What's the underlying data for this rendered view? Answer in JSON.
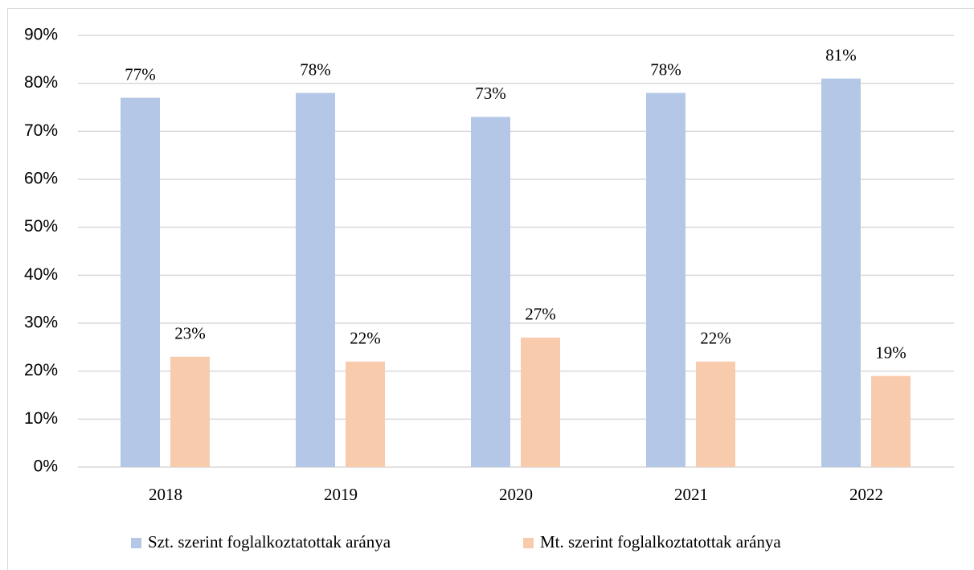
{
  "chart_data": {
    "type": "bar",
    "categories": [
      "2018",
      "2019",
      "2020",
      "2021",
      "2022"
    ],
    "series": [
      {
        "name": "Szt. szerint foglalkoztatottak aránya",
        "color": "#b4c7e7",
        "values": [
          77,
          78,
          73,
          78,
          81
        ],
        "value_labels": [
          "77%",
          "78%",
          "73%",
          "78%",
          "81%"
        ]
      },
      {
        "name": "Mt. szerint foglalkoztatottak aránya",
        "color": "#f8cbad",
        "values": [
          23,
          22,
          27,
          22,
          19
        ],
        "value_labels": [
          "23%",
          "22%",
          "27%",
          "22%",
          "19%"
        ]
      }
    ],
    "ylim": [
      0,
      90
    ],
    "yticks": [
      {
        "value": 0,
        "label": "0%"
      },
      {
        "value": 10,
        "label": "10%"
      },
      {
        "value": 20,
        "label": "20%"
      },
      {
        "value": 30,
        "label": "30%"
      },
      {
        "value": 40,
        "label": "40%"
      },
      {
        "value": 50,
        "label": "50%"
      },
      {
        "value": 60,
        "label": "60%"
      },
      {
        "value": 70,
        "label": "70%"
      },
      {
        "value": 80,
        "label": "80%"
      },
      {
        "value": 90,
        "label": "90%"
      }
    ],
    "grid": true,
    "legend": "bottom"
  }
}
